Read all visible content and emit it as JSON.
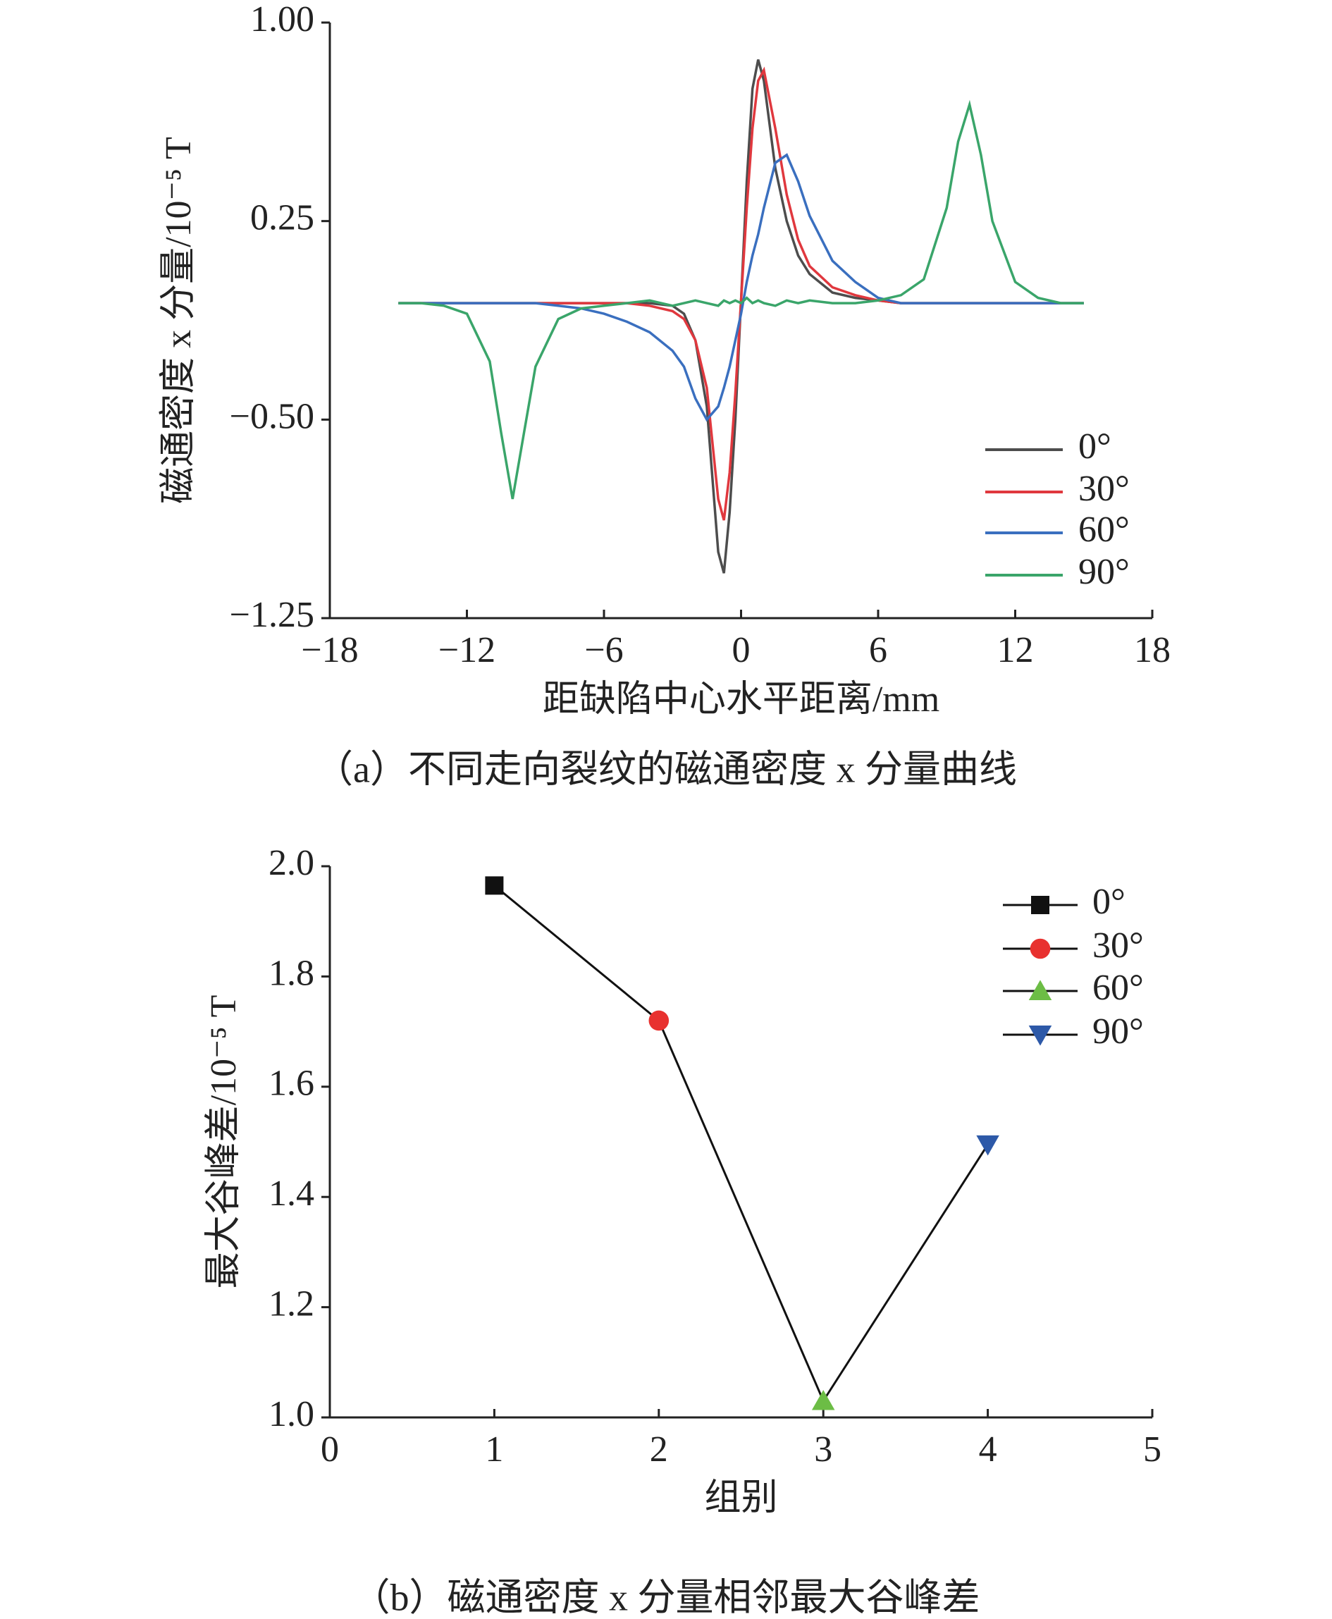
{
  "chart_data": [
    {
      "type": "line",
      "caption": "（a）不同走向裂纹的磁通密度 x 分量曲线",
      "x_label": "距缺陷中心水平距离/mm",
      "y_label": "磁通密度 x 分量/10⁻⁵ T",
      "xlim": [
        -18,
        18
      ],
      "xticks": [
        {
          "value": -18,
          "label": "−18"
        },
        {
          "value": -12,
          "label": "−12"
        },
        {
          "value": -6,
          "label": "−6"
        },
        0,
        6,
        12,
        18
      ],
      "ylim": [
        -1.25,
        1.0
      ],
      "yticks": [
        {
          "value": -1.25,
          "label": "−1.25"
        },
        {
          "value": -0.5,
          "label": "−0.50"
        },
        {
          "value": 0.25,
          "label": "0.25"
        },
        {
          "value": 1.0,
          "label": "1.00"
        }
      ],
      "legend": "lower-right",
      "x": [
        -15,
        -14,
        -13,
        -12,
        -11,
        -10.5,
        -10,
        -9.5,
        -9,
        -8,
        -7,
        -6,
        -5,
        -4,
        -3,
        -2.5,
        -2,
        -1.5,
        -1,
        -0.75,
        -0.5,
        -0.25,
        0,
        0.25,
        0.5,
        0.75,
        1,
        1.5,
        2,
        2.5,
        3,
        4,
        5,
        6,
        7,
        8,
        9,
        9.5,
        10,
        10.5,
        11,
        12,
        13,
        14,
        15
      ],
      "series": [
        {
          "name": "0°",
          "color": "#4d4d4d",
          "values": [
            -0.06,
            -0.06,
            -0.06,
            -0.06,
            -0.06,
            -0.06,
            -0.06,
            -0.06,
            -0.06,
            -0.06,
            -0.06,
            -0.06,
            -0.06,
            -0.06,
            -0.07,
            -0.1,
            -0.2,
            -0.45,
            -1.0,
            -1.08,
            -0.85,
            -0.5,
            -0.05,
            0.4,
            0.75,
            0.86,
            0.78,
            0.45,
            0.25,
            0.12,
            0.05,
            -0.02,
            -0.04,
            -0.05,
            -0.06,
            -0.06,
            -0.06,
            -0.06,
            -0.06,
            -0.06,
            -0.06,
            -0.06,
            -0.06,
            -0.06,
            -0.06
          ]
        },
        {
          "name": "30°",
          "color": "#e0383e",
          "values": [
            -0.06,
            -0.06,
            -0.06,
            -0.06,
            -0.06,
            -0.06,
            -0.06,
            -0.06,
            -0.06,
            -0.06,
            -0.06,
            -0.06,
            -0.06,
            -0.07,
            -0.09,
            -0.12,
            -0.2,
            -0.38,
            -0.8,
            -0.88,
            -0.7,
            -0.4,
            -0.05,
            0.3,
            0.6,
            0.78,
            0.82,
            0.6,
            0.35,
            0.18,
            0.08,
            0.0,
            -0.03,
            -0.05,
            -0.06,
            -0.06,
            -0.06,
            -0.06,
            -0.06,
            -0.06,
            -0.06,
            -0.06,
            -0.06,
            -0.06,
            -0.06
          ]
        },
        {
          "name": "60°",
          "color": "#3a6fbf",
          "values": [
            -0.06,
            -0.06,
            -0.06,
            -0.06,
            -0.06,
            -0.06,
            -0.06,
            -0.06,
            -0.06,
            -0.07,
            -0.08,
            -0.1,
            -0.13,
            -0.17,
            -0.24,
            -0.3,
            -0.42,
            -0.5,
            -0.45,
            -0.38,
            -0.3,
            -0.2,
            -0.1,
            0.02,
            0.12,
            0.2,
            0.3,
            0.47,
            0.5,
            0.4,
            0.27,
            0.1,
            0.02,
            -0.04,
            -0.06,
            -0.06,
            -0.06,
            -0.06,
            -0.06,
            -0.06,
            -0.06,
            -0.06,
            -0.06,
            -0.06,
            -0.06
          ]
        },
        {
          "name": "90°",
          "color": "#3aa56a",
          "values": [
            -0.06,
            -0.06,
            -0.07,
            -0.1,
            -0.28,
            -0.55,
            -0.8,
            -0.55,
            -0.3,
            -0.12,
            -0.08,
            -0.07,
            -0.06,
            -0.05,
            -0.07,
            -0.06,
            -0.05,
            -0.06,
            -0.07,
            -0.05,
            -0.06,
            -0.05,
            -0.06,
            -0.04,
            -0.06,
            -0.05,
            -0.06,
            -0.07,
            -0.05,
            -0.06,
            -0.05,
            -0.06,
            -0.06,
            -0.05,
            -0.03,
            0.03,
            0.3,
            0.55,
            0.69,
            0.5,
            0.25,
            0.02,
            -0.04,
            -0.06,
            -0.06
          ]
        }
      ]
    },
    {
      "type": "line-markers",
      "caption": "（b）磁通密度 x 分量相邻最大谷峰差",
      "x_label": "组别",
      "y_label": "最大谷峰差/10⁻⁵ T",
      "xlim": [
        0,
        5
      ],
      "xticks": [
        0,
        1,
        2,
        3,
        4,
        5
      ],
      "ylim": [
        1.0,
        2.0
      ],
      "yticks": [
        {
          "value": 1.0,
          "label": "1.0"
        },
        1.2,
        1.4,
        1.6,
        1.8,
        {
          "value": 2.0,
          "label": "2.0"
        }
      ],
      "legend": "upper-right",
      "line_color": "#111111",
      "x": [
        1,
        2,
        3,
        4
      ],
      "values": [
        1.965,
        1.72,
        1.03,
        1.495
      ],
      "markers": [
        {
          "name": "0°",
          "shape": "square",
          "color": "#111111"
        },
        {
          "name": "30°",
          "shape": "circle",
          "color": "#e8312f"
        },
        {
          "name": "60°",
          "shape": "triangle-up",
          "color": "#6cbd45"
        },
        {
          "name": "90°",
          "shape": "triangle-down",
          "color": "#2d59a8"
        }
      ]
    }
  ]
}
